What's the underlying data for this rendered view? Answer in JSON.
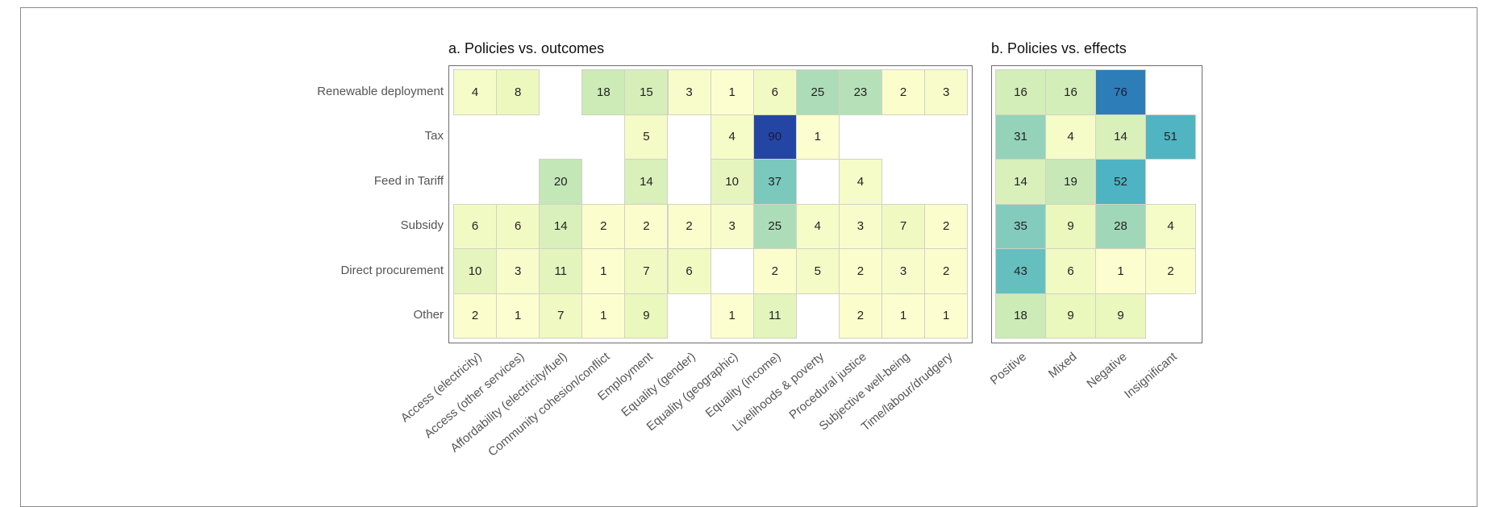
{
  "chart_data": [
    {
      "type": "heatmap",
      "title": "a. Policies vs. outcomes",
      "rows": [
        "Renewable deployment",
        "Tax",
        "Feed in Tariff",
        "Subsidy",
        "Direct procurement",
        "Other"
      ],
      "columns": [
        "Access (electricity)",
        "Access (other services)",
        "Affordability (electricity/fuel)",
        "Community cohesion/conflict",
        "Employment",
        "Equality (gender)",
        "Equality (geographic)",
        "Equality (income)",
        "Livelihoods & poverty",
        "Procedural justice",
        "Subjective well-being",
        "Time/labour/drudgery"
      ],
      "values": [
        [
          4,
          8,
          null,
          18,
          15,
          3,
          1,
          6,
          25,
          23,
          2,
          3
        ],
        [
          null,
          null,
          null,
          null,
          5,
          null,
          4,
          90,
          1,
          null,
          null,
          null
        ],
        [
          null,
          null,
          20,
          null,
          14,
          null,
          10,
          37,
          null,
          4,
          null,
          null
        ],
        [
          6,
          6,
          14,
          2,
          2,
          2,
          3,
          25,
          4,
          3,
          7,
          2
        ],
        [
          10,
          3,
          11,
          1,
          7,
          6,
          null,
          2,
          5,
          2,
          3,
          2
        ],
        [
          2,
          1,
          7,
          1,
          9,
          null,
          1,
          11,
          null,
          2,
          1,
          1
        ]
      ],
      "colormap": "YlGnBu",
      "xlabel": "",
      "ylabel": ""
    },
    {
      "type": "heatmap",
      "title": "b. Policies vs. effects",
      "rows": [
        "Renewable deployment",
        "Tax",
        "Feed in Tariff",
        "Subsidy",
        "Direct procurement",
        "Other"
      ],
      "columns": [
        "Positive",
        "Mixed",
        "Negative",
        "Insignificant"
      ],
      "values": [
        [
          16,
          16,
          76,
          null
        ],
        [
          31,
          4,
          14,
          51
        ],
        [
          14,
          19,
          52,
          null
        ],
        [
          35,
          9,
          28,
          4
        ],
        [
          43,
          6,
          1,
          2
        ],
        [
          18,
          9,
          9,
          null
        ]
      ],
      "colormap": "YlGnBu",
      "xlabel": "",
      "ylabel": ""
    }
  ],
  "panel_a": {
    "title": "a. Policies vs. outcomes",
    "rows": [
      "Renewable deployment",
      "Tax",
      "Feed in Tariff",
      "Subsidy",
      "Direct procurement",
      "Other"
    ],
    "columns": [
      "Access (electricity)",
      "Access (other services)",
      "Affordability (electricity/fuel)",
      "Community cohesion/conflict",
      "Employment",
      "Equality (gender)",
      "Equality (geographic)",
      "Equality (income)",
      "Livelihoods & poverty",
      "Procedural justice",
      "Subjective well-being",
      "Time/labour/drudgery"
    ]
  },
  "panel_b": {
    "title": "b. Policies vs. effects",
    "columns": [
      "Positive",
      "Mixed",
      "Negative",
      "Insignificant"
    ]
  }
}
